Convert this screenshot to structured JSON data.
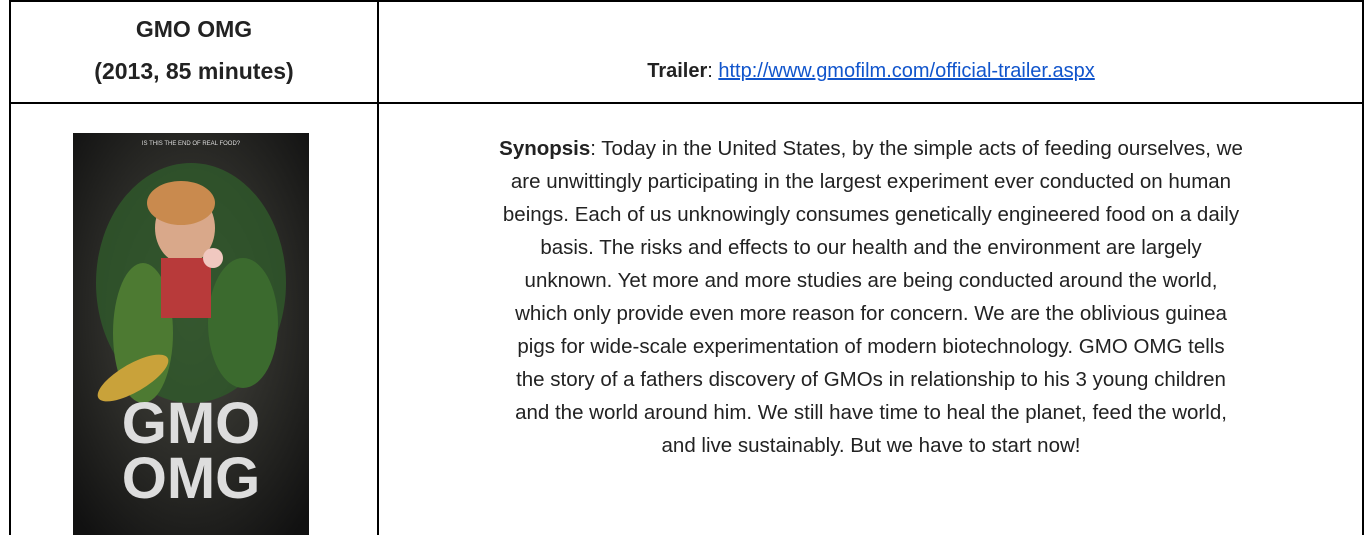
{
  "header": {
    "title": "GMO OMG",
    "subtitle": "(2013, 85 minutes)"
  },
  "trailer": {
    "label": "Trailer",
    "separator": ": ",
    "url": "http://www.gmofilm.com/official-trailer.aspx"
  },
  "poster": {
    "tagline": "IS THIS THE END OF REAL FOOD?",
    "title_line1": "GMO",
    "title_line2": "OMG"
  },
  "synopsis": {
    "label": "Synopsis",
    "lines": [
      ": Today in the United States, by the simple acts of feeding ourselves, we",
      "are unwittingly participating in the largest experiment ever conducted on human",
      "beings. Each of us unknowingly consumes genetically engineered food on a daily",
      "basis. The risks and effects to our health and the environment are largely",
      "unknown. Yet more and more studies are being conducted around the world,",
      "which only provide even more reason for concern. We are the oblivious guinea",
      "pigs for wide-scale experimentation of modern biotechnology. GMO OMG tells",
      "the story of a fathers discovery of GMOs in relationship to his 3 young children",
      "and the world around him. We still have time to heal the planet, feed the world,",
      "and live sustainably. But we have to start now!"
    ]
  }
}
